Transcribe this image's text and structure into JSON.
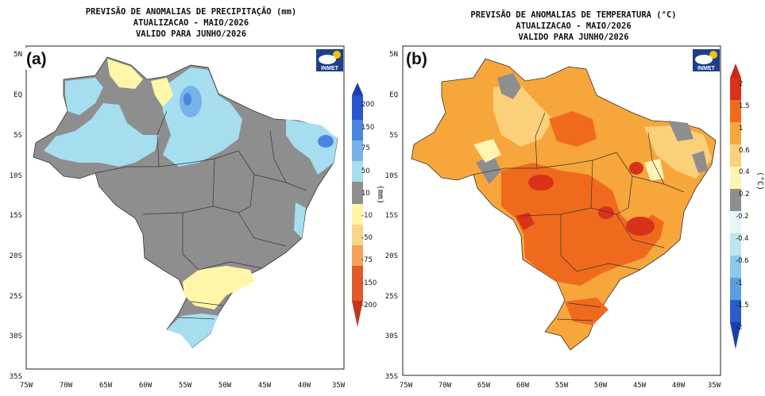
{
  "panel_a": {
    "title_line1": "PREVISÃO DE ANOMALIAS DE PRECIPITAÇÃO (mm)",
    "title_line2": "ATUALIZACAO - MAIO/2026",
    "title_line3": "VALIDO PARA JUNHO/2026",
    "panel_label": "(a)",
    "logo_text": "INMET",
    "unit_label": "(mm)",
    "colorbar_labels": [
      "200",
      "150",
      "75",
      "50",
      "10",
      "-10",
      "-50",
      "-75",
      "-150",
      "-200"
    ],
    "colorbar_colors": [
      "#2a55cc",
      "#4a86e0",
      "#78b2ea",
      "#a6def0",
      "#8e8e8e",
      "#fff6a8",
      "#f9d58a",
      "#f3a25a",
      "#e05a2a"
    ],
    "lat_labels": [
      "5N",
      "EQ",
      "5S",
      "10S",
      "15S",
      "20S",
      "25S",
      "30S",
      "35S"
    ],
    "lon_labels": [
      "75W",
      "70W",
      "65W",
      "60W",
      "55W",
      "50W",
      "45W",
      "40W",
      "35W"
    ]
  },
  "panel_b": {
    "title_line1": "PREVISÃO DE ANOMALIAS DE TEMPERATURA (°C)",
    "title_line2": "ATUALIZACAO - MAIO/2026",
    "title_line3": "VALIDO PARA JUNHO/2026",
    "panel_label": "(b)",
    "logo_text": "INMET",
    "unit_label": "(°C)",
    "colorbar_labels": [
      "2",
      "1.5",
      "1",
      "0.6",
      "0.4",
      "0.2",
      "-0.2",
      "-0.4",
      "-0.6",
      "-1",
      "-1.5",
      "-2"
    ],
    "colorbar_colors": [
      "#d8321a",
      "#f06a1e",
      "#f7a63c",
      "#fbd07a",
      "#fdf4b2",
      "#8e8e8e",
      "#e8f6fa",
      "#bfe4f2",
      "#8cc8ea",
      "#5a9ee0",
      "#2a5ccc"
    ],
    "lat_labels": [
      "5N",
      "EQ",
      "5S",
      "10S",
      "15S",
      "20S",
      "25S",
      "30S",
      "35S"
    ],
    "lon_labels": [
      "75W",
      "70W",
      "65W",
      "60W",
      "55W",
      "50W",
      "45W",
      "40W",
      "35W"
    ]
  }
}
